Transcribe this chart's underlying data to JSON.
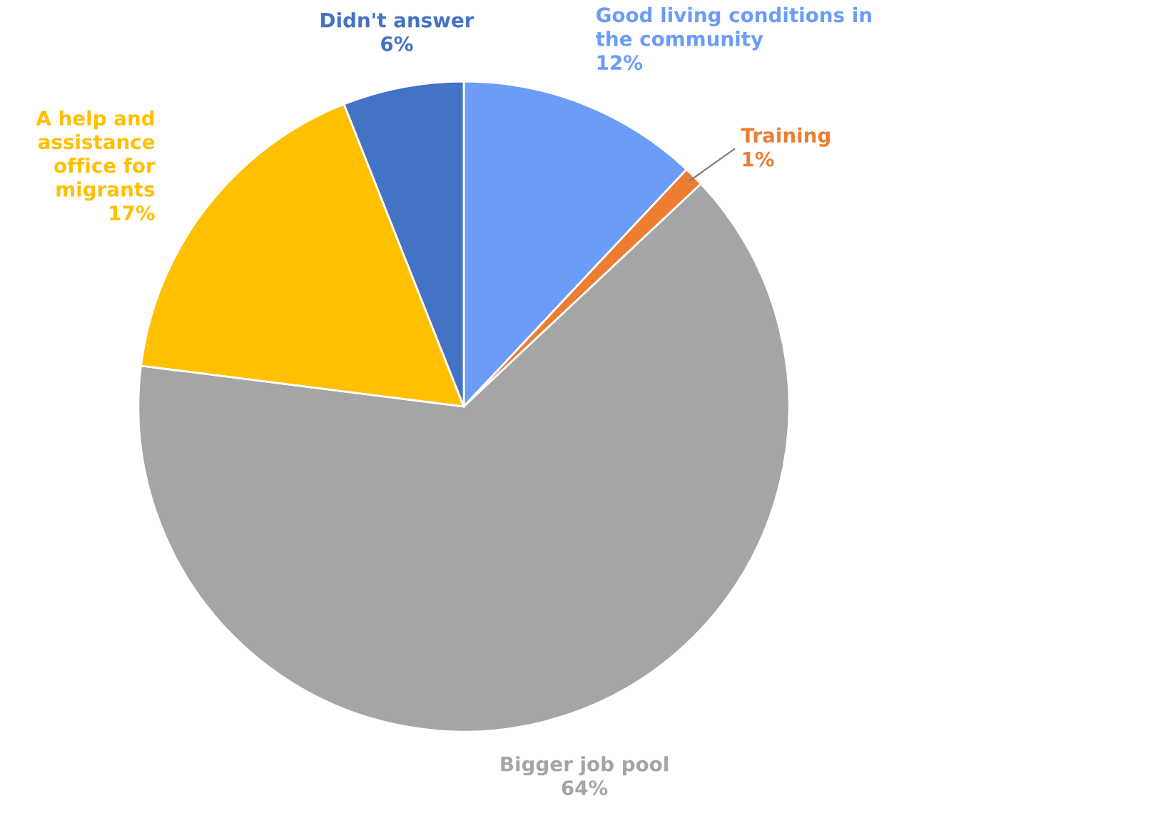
{
  "chart_data": {
    "type": "pie",
    "categories": [
      "Good living conditions in\nthe community",
      "Training",
      "Bigger job pool",
      "A help and\nassistance\noffice for\nmigrants",
      "Didn't answer"
    ],
    "values": [
      12,
      1,
      64,
      17,
      6
    ],
    "value_labels": [
      "12%",
      "1%",
      "64%",
      "17%",
      "6%"
    ],
    "colors": [
      "#6b9cf7",
      "#ed7d31",
      "#a5a5a5",
      "#ffc000",
      "#4472c4"
    ],
    "legend": false
  }
}
